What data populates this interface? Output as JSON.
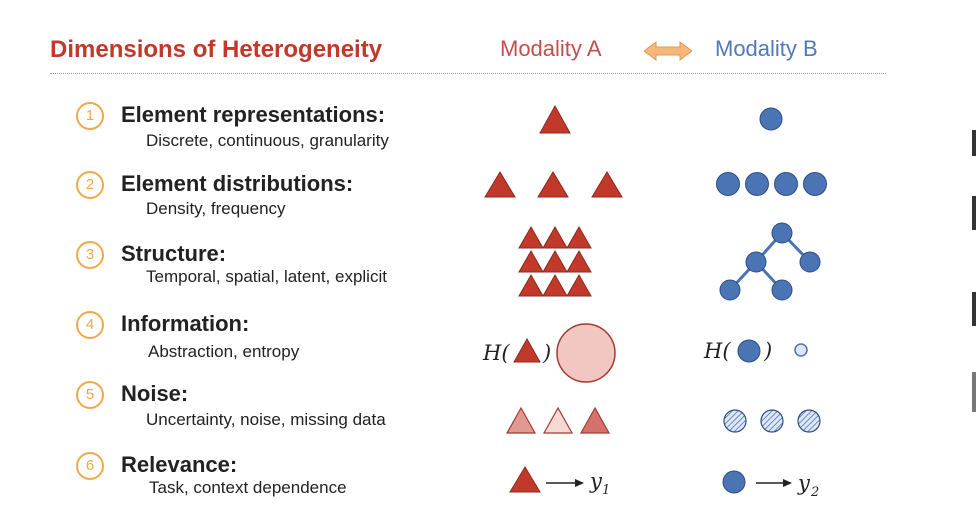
{
  "header": {
    "title": "Dimensions of Heterogeneity",
    "modality_a": "Modality A",
    "modality_b": "Modality B"
  },
  "rows": [
    {
      "num": "1",
      "title": "Element representations:",
      "subtitle": "Discrete, continuous, granularity"
    },
    {
      "num": "2",
      "title": "Element distributions:",
      "subtitle": "Density, frequency"
    },
    {
      "num": "3",
      "title": "Structure:",
      "subtitle": "Temporal, spatial, latent, explicit"
    },
    {
      "num": "4",
      "title": "Information:",
      "subtitle": "Abstraction, entropy"
    },
    {
      "num": "5",
      "title": "Noise:",
      "subtitle": "Uncertainty, noise, missing data"
    },
    {
      "num": "6",
      "title": "Relevance:",
      "subtitle": "Task, context dependence"
    }
  ],
  "math": {
    "entropy_h": "H(",
    "close_paren": ")",
    "y": "y",
    "y1_sub": "1",
    "y2_sub": "2"
  },
  "colors": {
    "modality_a": "#c0392b",
    "modality_b": "#4a74b4",
    "accent": "#f0a94a"
  }
}
